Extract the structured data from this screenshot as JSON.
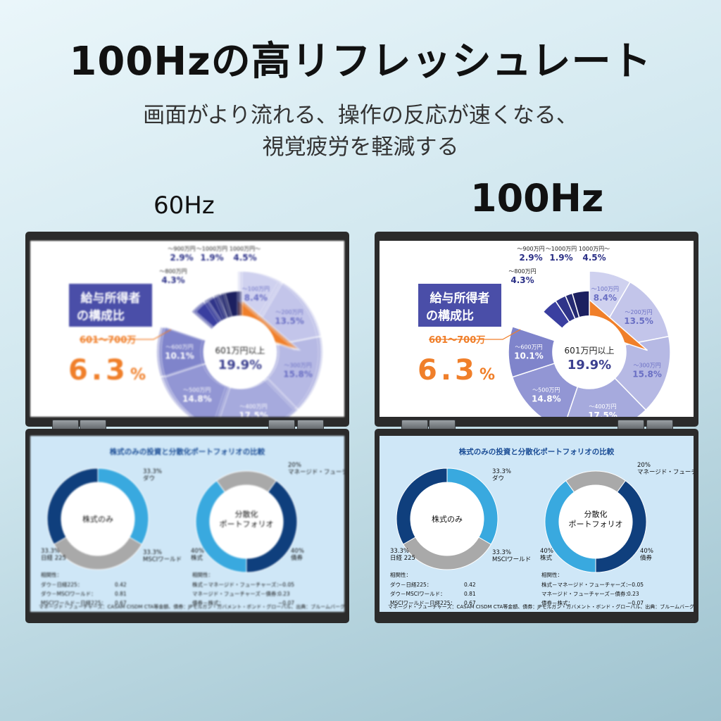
{
  "headline": "100Hzの高リフレッシュレート",
  "subline1": "画面がより流れる、操作の反応が速くなる、",
  "subline2": "視覚疲労を軽減する",
  "label_60": "60Hz",
  "label_100": "100Hz",
  "pie_screen": {
    "title_line1": "給与所得者",
    "title_line2": "の構成比",
    "highlight_label": "601～700万",
    "highlight_value": "6.3",
    "highlight_unit": "%",
    "center_label": "601万円以上",
    "center_value": "19.9%",
    "colors": {
      "accent": "#f07f2a",
      "title_box": "#4a4ea8"
    },
    "segments": [
      {
        "label": "～100万円",
        "value": "8.4%",
        "pct": 8.4
      },
      {
        "label": "～200万円",
        "value": "13.5%",
        "pct": 13.5
      },
      {
        "label": "～300万円",
        "value": "15.8%",
        "pct": 15.8
      },
      {
        "label": "～400万円",
        "value": "17.5%",
        "pct": 17.5
      },
      {
        "label": "～500万円",
        "value": "14.8%",
        "pct": 14.8
      },
      {
        "label": "～600万円",
        "value": "10.1%",
        "pct": 10.1
      },
      {
        "label": "～700万円",
        "value": "6.3%",
        "pct": 6.3
      },
      {
        "label": "～800万円",
        "value": "4.3%",
        "pct": 4.3
      },
      {
        "label": "～900万円",
        "value": "2.9%",
        "pct": 2.9
      },
      {
        "label": "～1000万円",
        "value": "1.9%",
        "pct": 1.9
      },
      {
        "label": "1000万円～",
        "value": "4.5%",
        "pct": 4.5
      }
    ]
  },
  "portfolio_screen": {
    "title": "株式のみの投資と分散化ポートフォリオの比較",
    "left_donut": {
      "center": "株式のみ",
      "labels": [
        {
          "pct": "33.3%",
          "name": "ダウ"
        },
        {
          "pct": "33.3%",
          "name": "MSCIワールド"
        },
        {
          "pct": "33.3%",
          "name": "日経 225"
        }
      ]
    },
    "right_donut": {
      "center_line1": "分散化",
      "center_line2": "ポートフォリオ",
      "labels": [
        {
          "pct": "20%",
          "name": "マネージド・フューチャーズ"
        },
        {
          "pct": "40%",
          "name": "債券"
        },
        {
          "pct": "40%",
          "name": "株式"
        }
      ]
    },
    "corr_left": {
      "heading": "相関性：",
      "rows": [
        {
          "k": "ダウ－日経225：",
          "v": "0.42"
        },
        {
          "k": "ダウ－MSCIワールド：",
          "v": "0.81"
        },
        {
          "k": "MSCIワールド－日経225：",
          "v": "0.67"
        }
      ]
    },
    "corr_right": {
      "heading": "相関性：",
      "rows": [
        {
          "k": "株式－マネージド・フューチャーズ：",
          "v": "−0.05"
        },
        {
          "k": "マネージド・フューチャーズ－債券：",
          "v": "0.23"
        },
        {
          "k": "債券－株式：",
          "v": "−0.07"
        }
      ]
    },
    "footnote": "マネージド・フューチャーズ：CASAM CISDM CTA等金額、債券：JPモルガン・ガバメント・ボンド・グローバル、出典：ブルームバーグ"
  }
}
